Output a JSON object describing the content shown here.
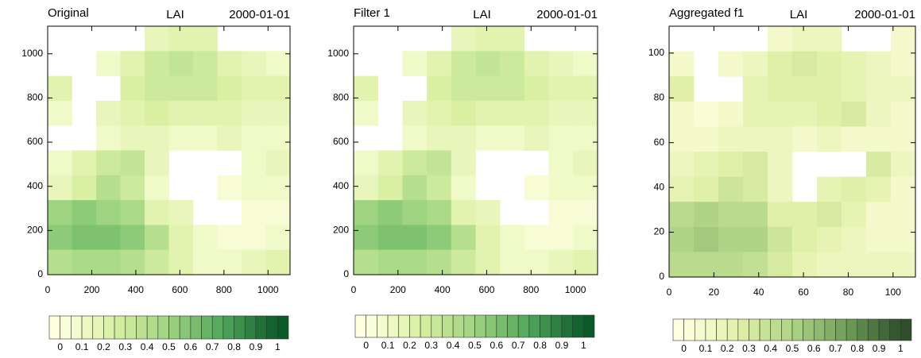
{
  "chart_data": [
    {
      "type": "heatmap",
      "left_title": "Original",
      "title": "LAI",
      "right_title": "2000-01-01",
      "xlim": [
        0,
        1100
      ],
      "ylim": [
        0,
        1125
      ],
      "xticks": [
        0,
        200,
        400,
        600,
        800,
        1000
      ],
      "yticks": [
        0,
        200,
        400,
        600,
        800,
        1000
      ],
      "cmap": [
        "#ffffe0",
        "#d9f0a3",
        "#9ed47f",
        "#4fa65a",
        "#0b5b2a"
      ],
      "colorbar_ticks": [
        0,
        0.1,
        0.2,
        0.3,
        0.4,
        0.5,
        0.6,
        0.7,
        0.8,
        0.9,
        1
      ],
      "z": [
        [
          null,
          null,
          null,
          null,
          0.15,
          0.2,
          0.2,
          null,
          null,
          null
        ],
        [
          null,
          null,
          0.1,
          0.2,
          0.3,
          0.35,
          0.3,
          0.2,
          0.15,
          0.1
        ],
        [
          0.2,
          null,
          null,
          0.25,
          0.3,
          0.3,
          0.3,
          0.25,
          0.2,
          0.2
        ],
        [
          0.1,
          null,
          0.15,
          0.2,
          0.25,
          0.2,
          0.2,
          0.2,
          0.15,
          0.15
        ],
        [
          null,
          null,
          0.1,
          0.15,
          0.15,
          0.1,
          0.1,
          0.15,
          0.1,
          0.1
        ],
        [
          0.1,
          0.2,
          0.3,
          0.35,
          0.15,
          null,
          null,
          null,
          0.1,
          0.15
        ],
        [
          0.15,
          0.25,
          0.4,
          0.3,
          0.1,
          null,
          null,
          0.05,
          0.1,
          0.1
        ],
        [
          0.5,
          0.55,
          0.5,
          0.45,
          0.2,
          0.15,
          null,
          null,
          0.05,
          0.05
        ],
        [
          0.55,
          0.6,
          0.6,
          0.55,
          0.4,
          0.2,
          0.1,
          0.05,
          0.05,
          0.1
        ],
        [
          0.4,
          0.45,
          0.45,
          0.4,
          0.3,
          0.2,
          0.1,
          0.1,
          0.15,
          0.2
        ]
      ]
    },
    {
      "type": "heatmap",
      "left_title": "Filter 1",
      "title": "LAI",
      "right_title": "2000-01-01",
      "xlim": [
        0,
        1100
      ],
      "ylim": [
        0,
        1125
      ],
      "xticks": [
        0,
        200,
        400,
        600,
        800,
        1000
      ],
      "yticks": [
        0,
        200,
        400,
        600,
        800,
        1000
      ],
      "cmap": [
        "#ffffe0",
        "#d9f0a3",
        "#9ed47f",
        "#4fa65a",
        "#0b5b2a"
      ],
      "colorbar_ticks": [
        0,
        0.1,
        0.2,
        0.3,
        0.4,
        0.5,
        0.6,
        0.7,
        0.8,
        0.9,
        1
      ],
      "z": [
        [
          null,
          null,
          null,
          null,
          0.15,
          0.2,
          0.2,
          null,
          null,
          null
        ],
        [
          null,
          null,
          0.1,
          0.2,
          0.3,
          0.35,
          0.3,
          0.2,
          0.15,
          0.1
        ],
        [
          0.2,
          null,
          null,
          0.25,
          0.3,
          0.3,
          0.3,
          0.25,
          0.2,
          0.2
        ],
        [
          0.1,
          null,
          0.15,
          0.2,
          0.25,
          0.2,
          0.2,
          0.2,
          0.15,
          0.15
        ],
        [
          null,
          null,
          0.1,
          0.15,
          0.15,
          0.1,
          0.1,
          0.15,
          0.1,
          0.1
        ],
        [
          0.1,
          0.2,
          0.3,
          0.35,
          0.15,
          null,
          null,
          null,
          0.1,
          0.15
        ],
        [
          0.15,
          0.25,
          0.4,
          0.3,
          0.1,
          null,
          null,
          0.05,
          0.1,
          0.1
        ],
        [
          0.5,
          0.55,
          0.5,
          0.45,
          0.2,
          0.15,
          null,
          null,
          0.05,
          0.05
        ],
        [
          0.55,
          0.6,
          0.6,
          0.55,
          0.4,
          0.2,
          0.1,
          0.05,
          0.05,
          0.1
        ],
        [
          0.4,
          0.45,
          0.45,
          0.4,
          0.3,
          0.2,
          0.1,
          0.1,
          0.15,
          0.2
        ]
      ]
    },
    {
      "type": "heatmap",
      "left_title": "Aggregated f1",
      "title": "LAI",
      "right_title": "2000-01-01",
      "xlim": [
        0,
        110
      ],
      "ylim": [
        0,
        112
      ],
      "xticks": [
        0,
        20,
        40,
        60,
        80,
        100
      ],
      "yticks": [
        0,
        20,
        40,
        60,
        80,
        100
      ],
      "cmap": [
        "#ffffe0",
        "#e0f0a8",
        "#b0d486",
        "#6e9e58",
        "#2f4f2a"
      ],
      "colorbar_ticks": [
        0,
        0.1,
        0.2,
        0.3,
        0.4,
        0.5,
        0.6,
        0.7,
        0.8,
        0.9,
        1
      ],
      "z": [
        [
          null,
          null,
          null,
          null,
          0.1,
          0.15,
          0.15,
          null,
          null,
          0.1
        ],
        [
          0.1,
          null,
          0.1,
          0.15,
          0.25,
          0.3,
          0.25,
          0.2,
          0.15,
          0.1
        ],
        [
          0.25,
          null,
          null,
          0.2,
          0.25,
          0.25,
          0.25,
          0.2,
          0.15,
          0.15
        ],
        [
          0.1,
          0.05,
          0.1,
          0.2,
          0.2,
          0.2,
          0.25,
          0.3,
          0.15,
          0.1
        ],
        [
          0.1,
          0.1,
          0.15,
          0.15,
          0.15,
          0.1,
          0.15,
          0.1,
          0.1,
          0.1
        ],
        [
          0.15,
          0.2,
          0.25,
          0.3,
          0.15,
          null,
          null,
          null,
          0.3,
          0.15
        ],
        [
          0.2,
          0.25,
          0.35,
          0.3,
          0.15,
          null,
          0.2,
          0.25,
          0.2,
          0.1
        ],
        [
          0.45,
          0.5,
          0.45,
          0.45,
          0.25,
          0.25,
          0.3,
          0.2,
          0.1,
          0.1
        ],
        [
          0.5,
          0.55,
          0.5,
          0.5,
          0.35,
          0.25,
          0.2,
          0.15,
          0.1,
          0.1
        ],
        [
          0.45,
          0.45,
          0.45,
          0.4,
          0.3,
          0.2,
          0.15,
          0.15,
          0.15,
          0.15
        ]
      ]
    }
  ]
}
